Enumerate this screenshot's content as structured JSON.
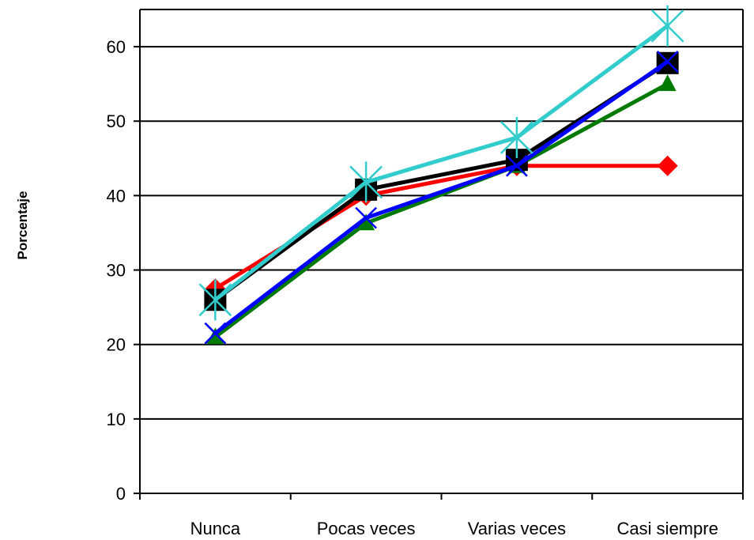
{
  "chart_data": {
    "type": "line",
    "title": "",
    "xlabel": "",
    "ylabel": "Porcentaje",
    "categories": [
      "Nunca",
      "Pocas veces",
      "Varias veces",
      "Casi siempre"
    ],
    "ylim": [
      0,
      65
    ],
    "yticks": [
      0,
      10,
      20,
      30,
      40,
      50,
      60
    ],
    "grid": true,
    "legend": "none",
    "series": [
      {
        "values": [
          27.5,
          40.0,
          44.0,
          44.0
        ],
        "color": "#ff0000",
        "marker": "diamond"
      },
      {
        "values": [
          21.0,
          36.3,
          44.0,
          55.0
        ],
        "color": "#007a00",
        "marker": "triangle"
      },
      {
        "values": [
          26.0,
          40.8,
          44.8,
          57.8
        ],
        "color": "#000000",
        "marker": "square"
      },
      {
        "values": [
          21.5,
          37.0,
          44.0,
          58.0
        ],
        "color": "#0000ff",
        "marker": "x"
      },
      {
        "values": [
          26.0,
          41.8,
          47.8,
          62.8
        ],
        "color": "#33cccc",
        "marker": "star"
      }
    ]
  }
}
